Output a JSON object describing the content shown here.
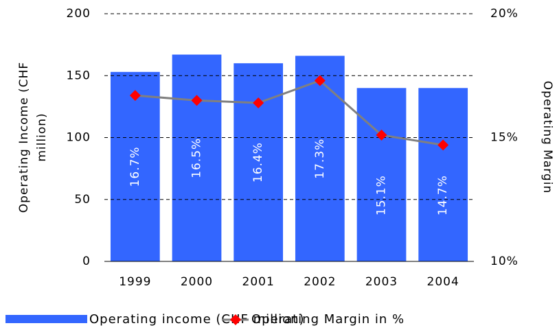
{
  "chart_data": {
    "type": "bar_line",
    "y_label": [
      "Operating Income (CHF",
      "million)"
    ],
    "y2_label": "Operating Margin",
    "categories": [
      "1999",
      "2000",
      "2001",
      "2002",
      "2003",
      "2004"
    ],
    "series": [
      {
        "name": "Operating income (CHF million)",
        "type": "bar",
        "color": "#3366ff",
        "values": [
          153,
          167,
          160,
          166,
          140,
          140
        ]
      },
      {
        "name": "Operating Margin in %",
        "type": "line",
        "axis": "y2",
        "color": "#808080",
        "marker_color": "#ff0000",
        "values": [
          16.7,
          16.5,
          16.4,
          17.3,
          15.1,
          14.7
        ],
        "value_labels": [
          "16.7%",
          "16.5%",
          "16.4%",
          "17.3%",
          "15.1%",
          "14.7%"
        ]
      }
    ],
    "ylim": [
      0,
      200
    ],
    "yticks": [
      0,
      50,
      100,
      150,
      200
    ],
    "y2lim": [
      10,
      20
    ],
    "y2ticks": [
      {
        "value": 10,
        "label": "10%"
      },
      {
        "value": 15,
        "label": "15%"
      },
      {
        "value": 20,
        "label": "20%"
      }
    ],
    "grid": true,
    "legend": "bottom"
  }
}
